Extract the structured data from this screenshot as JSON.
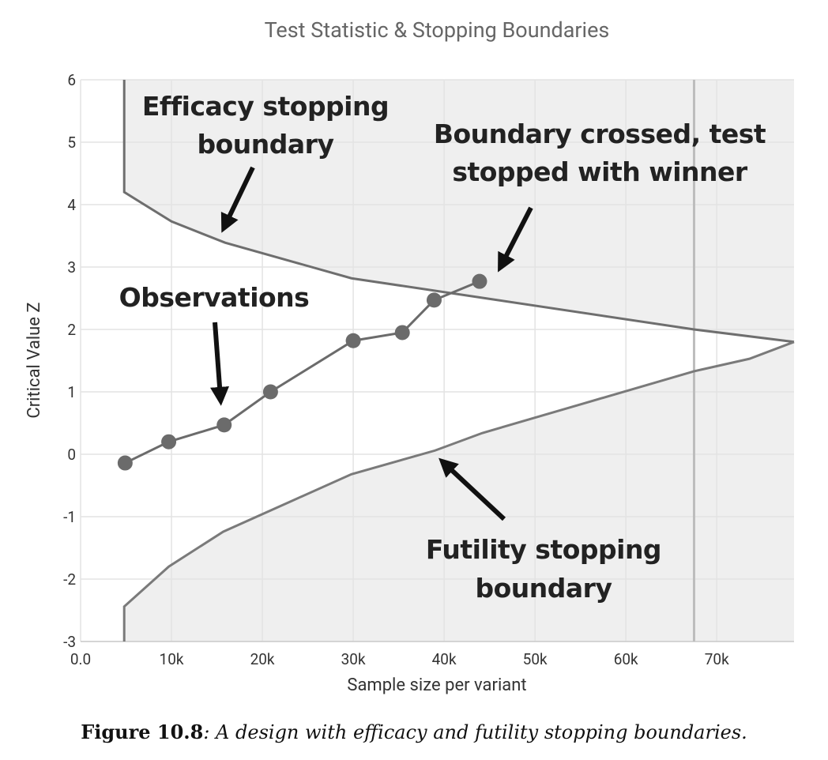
{
  "chart_data": {
    "type": "line",
    "title": "Test Statistic & Stopping Boundaries",
    "xlabel": "Sample size per variant",
    "ylabel": "Critical Value Z",
    "xlim": [
      0,
      78500
    ],
    "ylim": [
      -3,
      6
    ],
    "xticks": [
      {
        "value": 0,
        "label": "0.0"
      },
      {
        "value": 10000,
        "label": "10k"
      },
      {
        "value": 20000,
        "label": "20k"
      },
      {
        "value": 30000,
        "label": "30k"
      },
      {
        "value": 40000,
        "label": "40k"
      },
      {
        "value": 50000,
        "label": "50k"
      },
      {
        "value": 60000,
        "label": "60k"
      },
      {
        "value": 70000,
        "label": "70k"
      }
    ],
    "yticks": [
      -3,
      -2,
      -1,
      0,
      1,
      2,
      3,
      4,
      5,
      6
    ],
    "grid": true,
    "efficacy_boundary": {
      "color": "#6e6e6e",
      "x": [
        4800,
        4800,
        10000,
        15900,
        29800,
        67500,
        78500
      ],
      "y": [
        6,
        4.2,
        3.73,
        3.39,
        2.82,
        2.0,
        1.8
      ]
    },
    "futility_boundary": {
      "color": "#7a7a7a",
      "x": [
        4800,
        4800,
        9700,
        15700,
        29800,
        39000,
        44200,
        67500,
        73600,
        78500
      ],
      "y": [
        -3,
        -2.44,
        -1.8,
        -1.24,
        -0.32,
        0.06,
        0.34,
        1.33,
        1.53,
        1.8
      ]
    },
    "observations": {
      "color": "#6b6b6b",
      "x": [
        4900,
        9700,
        15800,
        20900,
        30000,
        35400,
        38900,
        43900
      ],
      "y": [
        -0.14,
        0.2,
        0.47,
        1.0,
        1.82,
        1.95,
        2.47,
        2.77
      ]
    },
    "max_sample_line": {
      "color": "#bdbdbd",
      "x": 67500
    },
    "annotations": {
      "efficacy": [
        "Efficacy stopping",
        "boundary"
      ],
      "crossed": [
        "Boundary crossed, test",
        "stopped with winner"
      ],
      "observations": [
        "Observations"
      ],
      "futility": [
        "Futility stopping",
        "boundary"
      ]
    }
  },
  "caption": {
    "label": "Figure 10.8",
    "text": ": A design with efficacy and futility stopping boundaries."
  }
}
